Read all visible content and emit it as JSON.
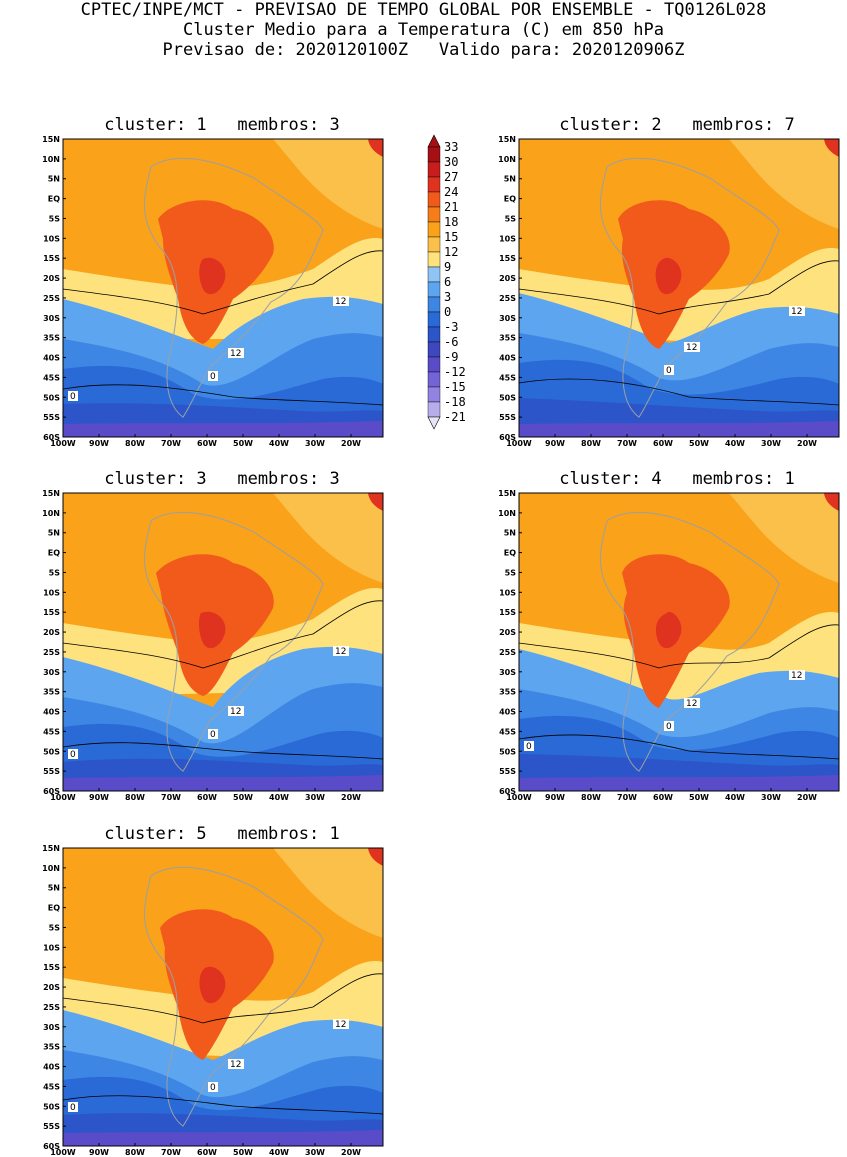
{
  "header": {
    "line1": "CPTEC/INPE/MCT - PREVISAO DE TEMPO GLOBAL POR ENSEMBLE - TQ0126L028",
    "line2": "Cluster Medio para a Temperatura (C) em 850 hPa",
    "line3": "Previsao de: 2020120100Z   Valido para: 2020120906Z"
  },
  "y_ticks": [
    "15N",
    "10N",
    "5N",
    "EQ",
    "5S",
    "10S",
    "15S",
    "20S",
    "25S",
    "30S",
    "35S",
    "40S",
    "45S",
    "50S",
    "55S",
    "60S"
  ],
  "x_ticks": [
    "100W",
    "90W",
    "80W",
    "70W",
    "60W",
    "50W",
    "40W",
    "30W",
    "20W"
  ],
  "colorbar": {
    "levels": [
      "33",
      "30",
      "27",
      "24",
      "21",
      "18",
      "15",
      "12",
      "9",
      "6",
      "3",
      "0",
      "-3",
      "-6",
      "-9",
      "-12",
      "-15",
      "-18",
      "-21"
    ],
    "colors": [
      "#a50f15",
      "#c81d1d",
      "#e0331f",
      "#f25a1c",
      "#f57e1a",
      "#f9a21a",
      "#fbc04a",
      "#fde27e",
      "#8fc4f4",
      "#5ea5ef",
      "#3d86e4",
      "#2a6ad6",
      "#2b55c9",
      "#3f47bf",
      "#5a4cc9",
      "#7463d6",
      "#9283e0",
      "#b7adeb"
    ]
  },
  "contour_colors": {
    "warm_core": "#f25a1c",
    "hot_spot": "#e0331f",
    "warm": "#f9a21a",
    "mild": "#fbc04a",
    "yellow": "#fde27e",
    "light_blue": "#5ea5ef",
    "mid_blue": "#3d86e4",
    "blue": "#2a6ad6",
    "deep_blue": "#2b55c9",
    "purple": "#5a4cc9"
  },
  "panels": [
    {
      "title": "cluster: 1   membros: 3",
      "labels": [
        "12",
        "12",
        "0",
        "0"
      ]
    },
    {
      "title": "cluster: 2   membros: 7",
      "labels": [
        "12",
        "12",
        "0"
      ]
    },
    {
      "title": "cluster: 3   membros: 3",
      "labels": [
        "12",
        "12",
        "0",
        "0"
      ]
    },
    {
      "title": "cluster: 4   membros: 1",
      "labels": [
        "12",
        "12",
        "0",
        "0"
      ]
    },
    {
      "title": "cluster: 5   membros: 1",
      "labels": [
        "12",
        "12",
        "0",
        "0"
      ]
    }
  ]
}
